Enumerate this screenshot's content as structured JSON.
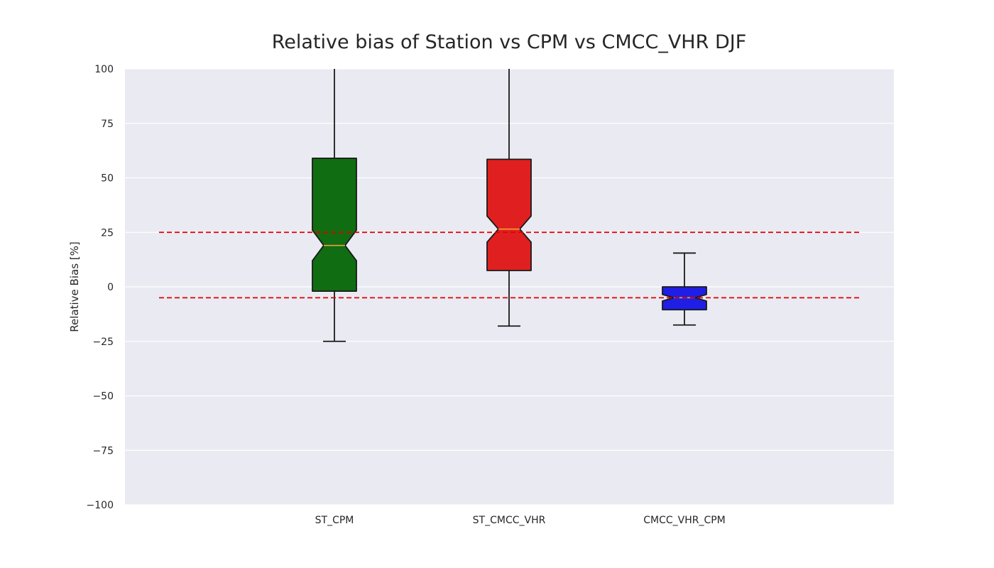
{
  "chart_data": {
    "type": "boxplot",
    "title": "Relative bias of Station vs CPM vs CMCC_VHR DJF",
    "xlabel": "",
    "ylabel": "Relative Bias [%]",
    "ylim": [
      -100,
      100
    ],
    "yticks": [
      -100,
      -75,
      -50,
      -25,
      0,
      25,
      50,
      75,
      100
    ],
    "ytick_labels": [
      "−100",
      "−75",
      "−50",
      "−25",
      "0",
      "25",
      "50",
      "75",
      "100"
    ],
    "grid": true,
    "notched": true,
    "categories": [
      "ST_CPM",
      "ST_CMCC_VHR",
      "CMCC_VHR_CPM"
    ],
    "boxes": [
      {
        "label": "ST_CPM",
        "whisker_low": -25,
        "q1": -2,
        "median": 19,
        "q3": 59,
        "whisker_high": 100,
        "notch_low": 12,
        "notch_high": 26,
        "color": "#106d12"
      },
      {
        "label": "ST_CMCC_VHR",
        "whisker_low": -18,
        "q1": 7.5,
        "median": 26.5,
        "q3": 58.5,
        "whisker_high": 100,
        "notch_low": 20.5,
        "notch_high": 32.5,
        "color": "#e02020"
      },
      {
        "label": "CMCC_VHR_CPM",
        "whisker_low": -17.5,
        "q1": -10.5,
        "median": -5,
        "q3": 0,
        "whisker_high": 15.5,
        "notch_low": -6.5,
        "notch_high": -3.5,
        "color": "#1f1ee6"
      }
    ],
    "reference_lines": [
      {
        "y": 25,
        "style": "dashed",
        "color": "#e00000"
      },
      {
        "y": -5,
        "style": "dashed",
        "color": "#e00000"
      }
    ],
    "colors": {
      "plot_background": "#eaeaf2",
      "grid": "#ffffff",
      "box_edge": "#1a1a1a",
      "median": "#f0a040"
    }
  }
}
